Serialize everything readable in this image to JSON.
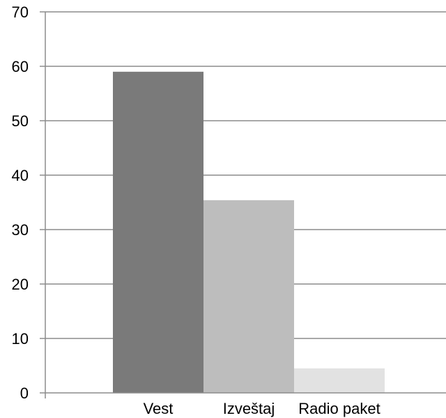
{
  "chart_data": {
    "type": "bar",
    "categories": [
      "Vest",
      "Izveštaj",
      "Radio paket"
    ],
    "values": [
      59,
      35.4,
      4.5
    ],
    "colors": [
      "#7a7a7a",
      "#bdbdbd",
      "#e2e2e2"
    ],
    "ylim": [
      0,
      70
    ],
    "yticks": [
      "0",
      "10",
      "20",
      "30",
      "40",
      "50",
      "60",
      "70"
    ],
    "grid": true,
    "gridline_color": "#8c8c8c"
  }
}
